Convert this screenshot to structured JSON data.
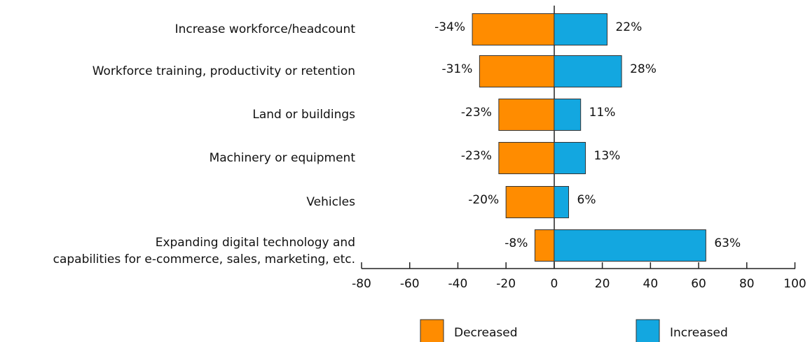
{
  "chart_data": {
    "type": "diverging_bar",
    "categories": [
      "Increase workforce/headcount",
      "Workforce training, productivity or retention",
      "Land or buildings",
      "Machinery or equipment",
      "Vehicles",
      [
        "Expanding digital technology and",
        "capabilities for e-commerce, sales, marketing, etc."
      ]
    ],
    "series": [
      {
        "name": "Decreased",
        "color": "#ff8c00",
        "values": [
          -34,
          -31,
          -23,
          -23,
          -20,
          -8
        ],
        "value_labels": [
          "-34%",
          "-31%",
          "-23%",
          "-23%",
          "-20%",
          "-8%"
        ]
      },
      {
        "name": "Increased",
        "color": "#13a7e0",
        "values": [
          22,
          28,
          11,
          13,
          6,
          63
        ],
        "value_labels": [
          "22%",
          "28%",
          "11%",
          "13%",
          "6%",
          "63%"
        ]
      }
    ],
    "xlim": [
      -80,
      100
    ],
    "xticks": [
      -80,
      -60,
      -40,
      -20,
      0,
      20,
      40,
      60,
      80,
      100
    ],
    "legend": "bottom"
  }
}
